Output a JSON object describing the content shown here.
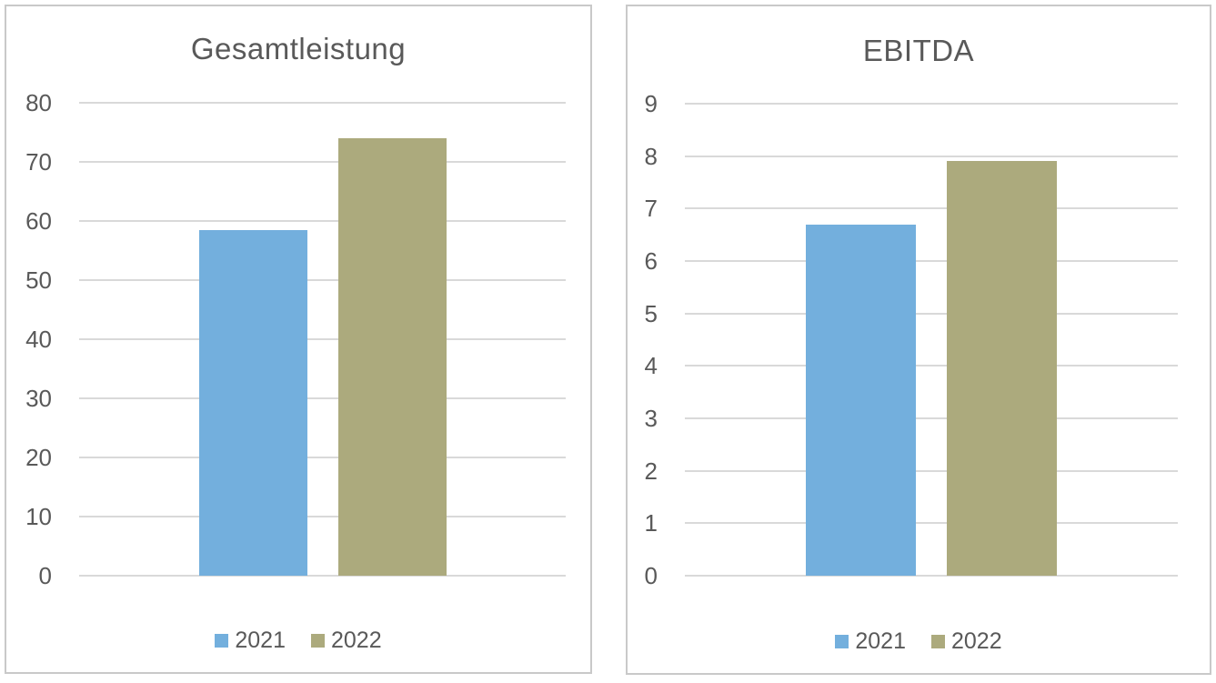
{
  "colors": {
    "series_2021": "#73AFDD",
    "series_2022": "#ACAA7D",
    "gridline": "#D9D9D9",
    "panel_border": "#C9C9C9",
    "text": "#595959",
    "background": "#FFFFFF"
  },
  "chart_data": [
    {
      "type": "bar",
      "title": "Gesamtleistung",
      "categories": [
        ""
      ],
      "series": [
        {
          "name": "2021",
          "values": [
            58.5
          ]
        },
        {
          "name": "2022",
          "values": [
            74
          ]
        }
      ],
      "ylim": [
        0,
        80
      ],
      "yticks": [
        0,
        10,
        20,
        30,
        40,
        50,
        60,
        70,
        80
      ],
      "grid": true,
      "legend_position": "bottom",
      "legend_entries": [
        "2021",
        "2022"
      ]
    },
    {
      "type": "bar",
      "title": "EBITDA",
      "categories": [
        ""
      ],
      "series": [
        {
          "name": "2021",
          "values": [
            6.7
          ]
        },
        {
          "name": "2022",
          "values": [
            7.9
          ]
        }
      ],
      "ylim": [
        0,
        9
      ],
      "yticks": [
        0,
        1,
        2,
        3,
        4,
        5,
        6,
        7,
        8,
        9
      ],
      "grid": true,
      "legend_position": "bottom",
      "legend_entries": [
        "2021",
        "2022"
      ]
    }
  ]
}
